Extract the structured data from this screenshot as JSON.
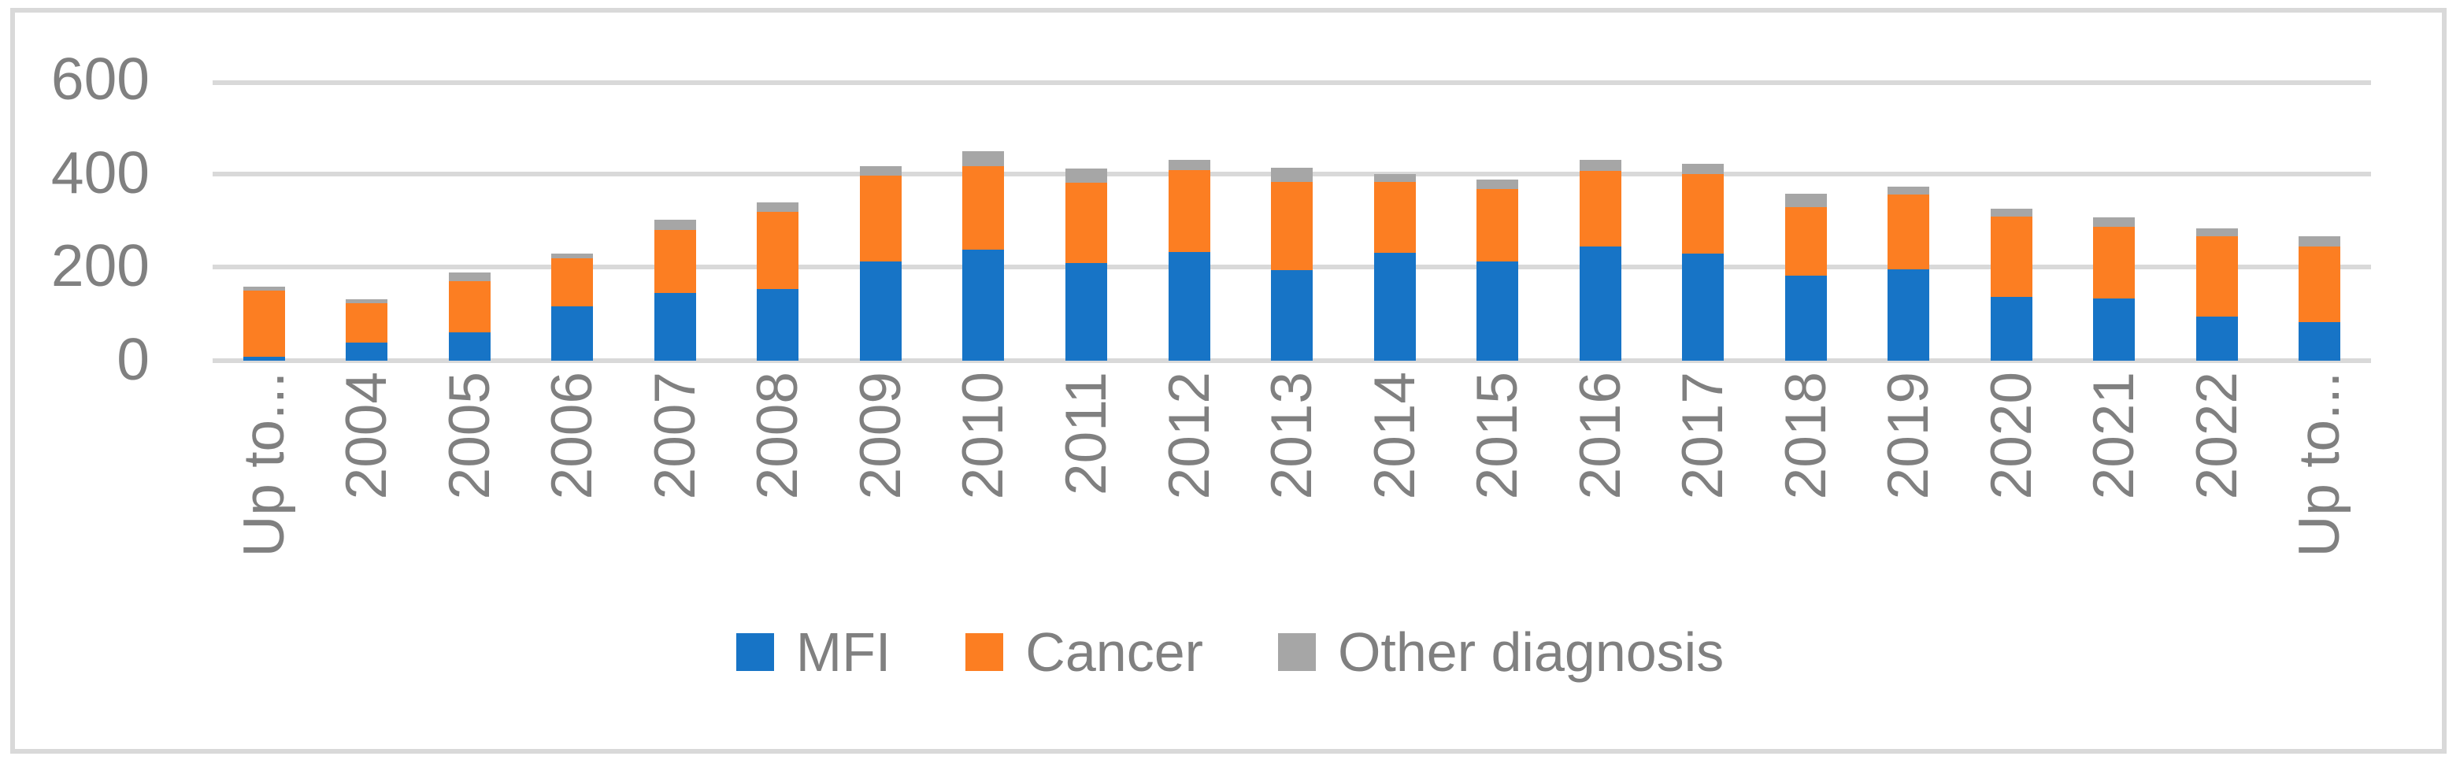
{
  "chart_data": {
    "type": "bar",
    "stacked": true,
    "title": "",
    "xlabel": "",
    "ylabel": "",
    "categories": [
      "Up to...",
      "2004",
      "2005",
      "2006",
      "2007",
      "2008",
      "2009",
      "2010",
      "2011",
      "2012",
      "2013",
      "2014",
      "2015",
      "2016",
      "2017",
      "2018",
      "2019",
      "2020",
      "2021",
      "2022",
      "Up to..."
    ],
    "series": [
      {
        "name": "MFI",
        "color": "#1774C6",
        "values": [
          8,
          39,
          61,
          116,
          145,
          153,
          212,
          238,
          209,
          233,
          194,
          231,
          213,
          245,
          229,
          182,
          196,
          137,
          133,
          94,
          83
        ]
      },
      {
        "name": "Cancer",
        "color": "#FC7E22",
        "values": [
          142,
          84,
          110,
          103,
          135,
          165,
          184,
          178,
          172,
          175,
          189,
          152,
          154,
          161,
          171,
          147,
          159,
          171,
          153,
          172,
          162
        ]
      },
      {
        "name": "Other diagnosis",
        "color": "#A6A6A6",
        "values": [
          9,
          8,
          18,
          11,
          22,
          21,
          20,
          33,
          30,
          22,
          30,
          16,
          21,
          24,
          22,
          28,
          17,
          17,
          21,
          18,
          21
        ]
      }
    ],
    "y_ticks": [
      0,
      200,
      400,
      600
    ],
    "ylim": [
      0,
      600
    ],
    "grid": "horizontal",
    "gridline_color": "#D9D9D9",
    "axis_text_color": "#808080",
    "legend_position": "bottom"
  }
}
